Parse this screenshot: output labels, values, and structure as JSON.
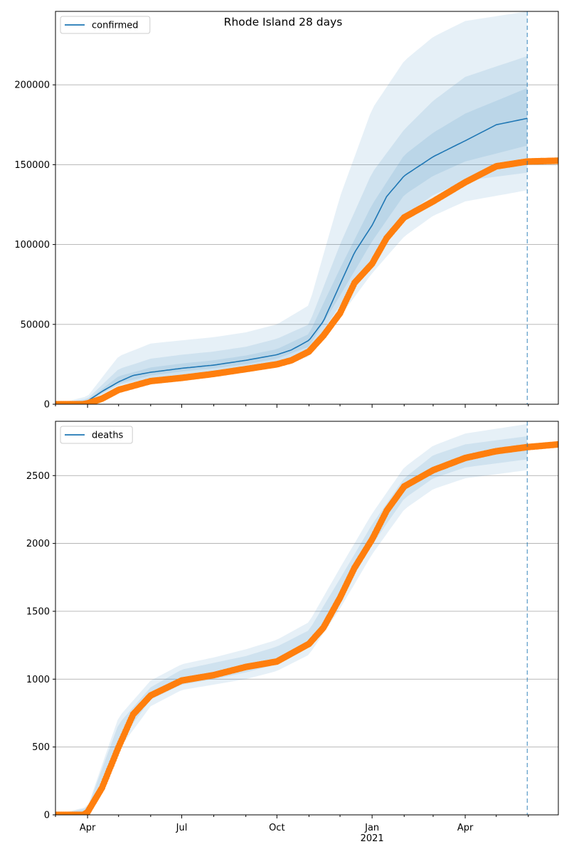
{
  "title": "Rhode Island 28 days",
  "colors": {
    "model": "#1f77b4",
    "observed": "#ff7f0e",
    "band": "#1f77b4",
    "grid": "#b0b0b0",
    "forecast_line": "#1f77b4"
  },
  "x_axis": {
    "tick_labels": [
      "Apr",
      "Jul",
      "Oct",
      "Jan",
      "Apr"
    ],
    "year_label": "2021",
    "range": [
      "2020-03-01",
      "2021-06-30"
    ],
    "forecast_date": "2021-05-31"
  },
  "chart_data": [
    {
      "type": "line",
      "panel": "top",
      "title": "Rhode Island 28 days",
      "legend": "confirmed",
      "legend_position": "top-left",
      "ylim": [
        0,
        246000
      ],
      "yticks": [
        0,
        50000,
        100000,
        150000,
        200000
      ],
      "ytick_labels": [
        "0",
        "50000",
        "100000",
        "150000",
        "200000"
      ],
      "grid": "horizontal",
      "model": [
        [
          "2020-03-01",
          0
        ],
        [
          "2020-03-27",
          0
        ],
        [
          "2020-04-01",
          2000
        ],
        [
          "2020-04-15",
          8000
        ],
        [
          "2020-05-01",
          14000
        ],
        [
          "2020-05-15",
          18000
        ],
        [
          "2020-06-01",
          20000
        ],
        [
          "2020-07-01",
          22500
        ],
        [
          "2020-08-01",
          24500
        ],
        [
          "2020-09-01",
          27500
        ],
        [
          "2020-10-01",
          31000
        ],
        [
          "2020-10-15",
          34000
        ],
        [
          "2020-11-01",
          40000
        ],
        [
          "2020-11-15",
          52000
        ],
        [
          "2020-12-01",
          75000
        ],
        [
          "2020-12-15",
          95000
        ],
        [
          "2021-01-01",
          112000
        ],
        [
          "2021-01-15",
          130000
        ],
        [
          "2021-02-01",
          143000
        ],
        [
          "2021-03-01",
          155000
        ],
        [
          "2021-04-01",
          165000
        ],
        [
          "2021-05-01",
          175000
        ],
        [
          "2021-05-31",
          179000
        ]
      ],
      "bands": [
        {
          "name": "outer",
          "lower": [
            [
              "2020-03-01",
              0
            ],
            [
              "2020-04-01",
              1000
            ],
            [
              "2020-05-01",
              10000
            ],
            [
              "2020-06-01",
              14000
            ],
            [
              "2020-07-01",
              16000
            ],
            [
              "2020-08-01",
              17500
            ],
            [
              "2020-09-01",
              20000
            ],
            [
              "2020-10-01",
              23000
            ],
            [
              "2020-11-01",
              30000
            ],
            [
              "2020-12-01",
              55000
            ],
            [
              "2021-01-01",
              82000
            ],
            [
              "2021-02-01",
              105000
            ],
            [
              "2021-03-01",
              118000
            ],
            [
              "2021-04-01",
              127000
            ],
            [
              "2021-05-31",
              134000
            ]
          ],
          "upper": [
            [
              "2020-03-01",
              0
            ],
            [
              "2020-04-01",
              5000
            ],
            [
              "2020-05-01",
              30000
            ],
            [
              "2020-06-01",
              38000
            ],
            [
              "2020-07-01",
              40000
            ],
            [
              "2020-08-01",
              42000
            ],
            [
              "2020-09-01",
              45000
            ],
            [
              "2020-10-01",
              50000
            ],
            [
              "2020-11-01",
              62000
            ],
            [
              "2020-12-01",
              130000
            ],
            [
              "2021-01-01",
              185000
            ],
            [
              "2021-02-01",
              215000
            ],
            [
              "2021-03-01",
              230000
            ],
            [
              "2021-04-01",
              240000
            ],
            [
              "2021-05-31",
              246000
            ]
          ]
        },
        {
          "name": "mid",
          "lower": [
            [
              "2020-03-01",
              0
            ],
            [
              "2020-04-01",
              1500
            ],
            [
              "2020-05-01",
              12000
            ],
            [
              "2020-06-01",
              16500
            ],
            [
              "2020-07-01",
              18500
            ],
            [
              "2020-08-01",
              20500
            ],
            [
              "2020-09-01",
              23000
            ],
            [
              "2020-10-01",
              26000
            ],
            [
              "2020-11-01",
              33000
            ],
            [
              "2020-12-01",
              62000
            ],
            [
              "2021-01-01",
              92000
            ],
            [
              "2021-02-01",
              118000
            ],
            [
              "2021-03-01",
              131000
            ],
            [
              "2021-04-01",
              140000
            ],
            [
              "2021-05-31",
              145000
            ]
          ],
          "upper": [
            [
              "2020-03-01",
              0
            ],
            [
              "2020-04-01",
              3500
            ],
            [
              "2020-05-01",
              22000
            ],
            [
              "2020-06-01",
              28500
            ],
            [
              "2020-07-01",
              31000
            ],
            [
              "2020-08-01",
              33000
            ],
            [
              "2020-09-01",
              36000
            ],
            [
              "2020-10-01",
              41000
            ],
            [
              "2020-11-01",
              50000
            ],
            [
              "2020-12-01",
              100000
            ],
            [
              "2021-01-01",
              145000
            ],
            [
              "2021-02-01",
              172000
            ],
            [
              "2021-03-01",
              190000
            ],
            [
              "2021-04-01",
              205000
            ],
            [
              "2021-05-31",
              218000
            ]
          ]
        },
        {
          "name": "inner",
          "lower": [
            [
              "2020-03-01",
              0
            ],
            [
              "2020-04-01",
              1800
            ],
            [
              "2020-05-01",
              13000
            ],
            [
              "2020-06-01",
              18000
            ],
            [
              "2020-07-01",
              20500
            ],
            [
              "2020-08-01",
              22500
            ],
            [
              "2020-09-01",
              25000
            ],
            [
              "2020-10-01",
              28500
            ],
            [
              "2020-11-01",
              36000
            ],
            [
              "2020-12-01",
              68000
            ],
            [
              "2021-01-01",
              102000
            ],
            [
              "2021-02-01",
              131000
            ],
            [
              "2021-03-01",
              143000
            ],
            [
              "2021-04-01",
              152000
            ],
            [
              "2021-05-31",
              162000
            ]
          ],
          "upper": [
            [
              "2020-03-01",
              0
            ],
            [
              "2020-04-01",
              2600
            ],
            [
              "2020-05-01",
              17500
            ],
            [
              "2020-06-01",
              23000
            ],
            [
              "2020-07-01",
              25500
            ],
            [
              "2020-08-01",
              27500
            ],
            [
              "2020-09-01",
              30500
            ],
            [
              "2020-10-01",
              34500
            ],
            [
              "2020-11-01",
              44000
            ],
            [
              "2020-12-01",
              85000
            ],
            [
              "2021-01-01",
              125000
            ],
            [
              "2021-02-01",
              156000
            ],
            [
              "2021-03-01",
              170000
            ],
            [
              "2021-04-01",
              182000
            ],
            [
              "2021-05-31",
              198000
            ]
          ]
        }
      ],
      "observed": [
        [
          "2020-03-01",
          0
        ],
        [
          "2020-03-27",
          0
        ],
        [
          "2020-04-01",
          500
        ],
        [
          "2020-04-15",
          3500
        ],
        [
          "2020-05-01",
          9000
        ],
        [
          "2020-05-15",
          11500
        ],
        [
          "2020-06-01",
          14500
        ],
        [
          "2020-07-01",
          16500
        ],
        [
          "2020-08-01",
          19000
        ],
        [
          "2020-09-01",
          22000
        ],
        [
          "2020-10-01",
          25000
        ],
        [
          "2020-10-15",
          27500
        ],
        [
          "2020-11-01",
          33000
        ],
        [
          "2020-11-15",
          43000
        ],
        [
          "2020-12-01",
          57000
        ],
        [
          "2020-12-15",
          76000
        ],
        [
          "2021-01-01",
          88000
        ],
        [
          "2021-01-15",
          104000
        ],
        [
          "2021-02-01",
          117000
        ],
        [
          "2021-03-01",
          127000
        ],
        [
          "2021-04-01",
          139000
        ],
        [
          "2021-05-01",
          149000
        ],
        [
          "2021-05-31",
          152000
        ],
        [
          "2021-06-30",
          152500
        ]
      ]
    },
    {
      "type": "line",
      "panel": "bottom",
      "legend": "deaths",
      "legend_position": "top-left",
      "ylim": [
        0,
        2900
      ],
      "yticks": [
        0,
        500,
        1000,
        1500,
        2000,
        2500
      ],
      "ytick_labels": [
        "0",
        "500",
        "1000",
        "1500",
        "2000",
        "2500"
      ],
      "grid": "horizontal",
      "bands": [
        {
          "name": "outer",
          "lower": [
            [
              "2020-03-01",
              0
            ],
            [
              "2020-04-01",
              20
            ],
            [
              "2020-05-01",
              480
            ],
            [
              "2020-06-01",
              800
            ],
            [
              "2020-07-01",
              920
            ],
            [
              "2020-08-01",
              960
            ],
            [
              "2020-09-01",
              1000
            ],
            [
              "2020-10-01",
              1060
            ],
            [
              "2020-11-01",
              1180
            ],
            [
              "2020-12-01",
              1520
            ],
            [
              "2021-01-01",
              1920
            ],
            [
              "2021-02-01",
              2250
            ],
            [
              "2021-03-01",
              2400
            ],
            [
              "2021-04-01",
              2480
            ],
            [
              "2021-05-31",
              2540
            ]
          ],
          "upper": [
            [
              "2020-03-01",
              0
            ],
            [
              "2020-04-01",
              60
            ],
            [
              "2020-05-01",
              720
            ],
            [
              "2020-06-01",
              990
            ],
            [
              "2020-07-01",
              1110
            ],
            [
              "2020-08-01",
              1160
            ],
            [
              "2020-09-01",
              1220
            ],
            [
              "2020-10-01",
              1290
            ],
            [
              "2020-11-01",
              1420
            ],
            [
              "2020-12-01",
              1820
            ],
            [
              "2021-01-01",
              2220
            ],
            [
              "2021-02-01",
              2560
            ],
            [
              "2021-03-01",
              2720
            ],
            [
              "2021-04-01",
              2810
            ],
            [
              "2021-05-31",
              2880
            ]
          ]
        },
        {
          "name": "mid",
          "lower": [
            [
              "2020-03-01",
              0
            ],
            [
              "2020-04-01",
              25
            ],
            [
              "2020-05-01",
              530
            ],
            [
              "2020-06-01",
              850
            ],
            [
              "2020-07-01",
              960
            ],
            [
              "2020-08-01",
              1000
            ],
            [
              "2020-09-01",
              1050
            ],
            [
              "2020-10-01",
              1110
            ],
            [
              "2020-11-01",
              1240
            ],
            [
              "2020-12-01",
              1590
            ],
            [
              "2021-01-01",
              1990
            ],
            [
              "2021-02-01",
              2330
            ],
            [
              "2021-03-01",
              2480
            ],
            [
              "2021-04-01",
              2560
            ],
            [
              "2021-05-31",
              2620
            ]
          ],
          "upper": [
            [
              "2020-03-01",
              0
            ],
            [
              "2020-04-01",
              50
            ],
            [
              "2020-05-01",
              670
            ],
            [
              "2020-06-01",
              940
            ],
            [
              "2020-07-01",
              1070
            ],
            [
              "2020-08-01",
              1120
            ],
            [
              "2020-09-01",
              1170
            ],
            [
              "2020-10-01",
              1240
            ],
            [
              "2020-11-01",
              1360
            ],
            [
              "2020-12-01",
              1740
            ],
            [
              "2021-01-01",
              2140
            ],
            [
              "2021-02-01",
              2480
            ],
            [
              "2021-03-01",
              2650
            ],
            [
              "2021-04-01",
              2730
            ],
            [
              "2021-05-31",
              2790
            ]
          ]
        }
      ],
      "observed": [
        [
          "2020-03-01",
          0
        ],
        [
          "2020-03-28",
          0
        ],
        [
          "2020-04-01",
          20
        ],
        [
          "2020-04-15",
          200
        ],
        [
          "2020-05-01",
          500
        ],
        [
          "2020-05-15",
          740
        ],
        [
          "2020-06-01",
          880
        ],
        [
          "2020-07-01",
          990
        ],
        [
          "2020-08-01",
          1030
        ],
        [
          "2020-09-01",
          1090
        ],
        [
          "2020-10-01",
          1130
        ],
        [
          "2020-11-01",
          1260
        ],
        [
          "2020-11-15",
          1380
        ],
        [
          "2020-12-01",
          1600
        ],
        [
          "2020-12-15",
          1820
        ],
        [
          "2021-01-01",
          2030
        ],
        [
          "2021-01-15",
          2240
        ],
        [
          "2021-02-01",
          2420
        ],
        [
          "2021-03-01",
          2540
        ],
        [
          "2021-04-01",
          2630
        ],
        [
          "2021-05-01",
          2680
        ],
        [
          "2021-05-31",
          2710
        ],
        [
          "2021-06-30",
          2730
        ]
      ]
    }
  ]
}
